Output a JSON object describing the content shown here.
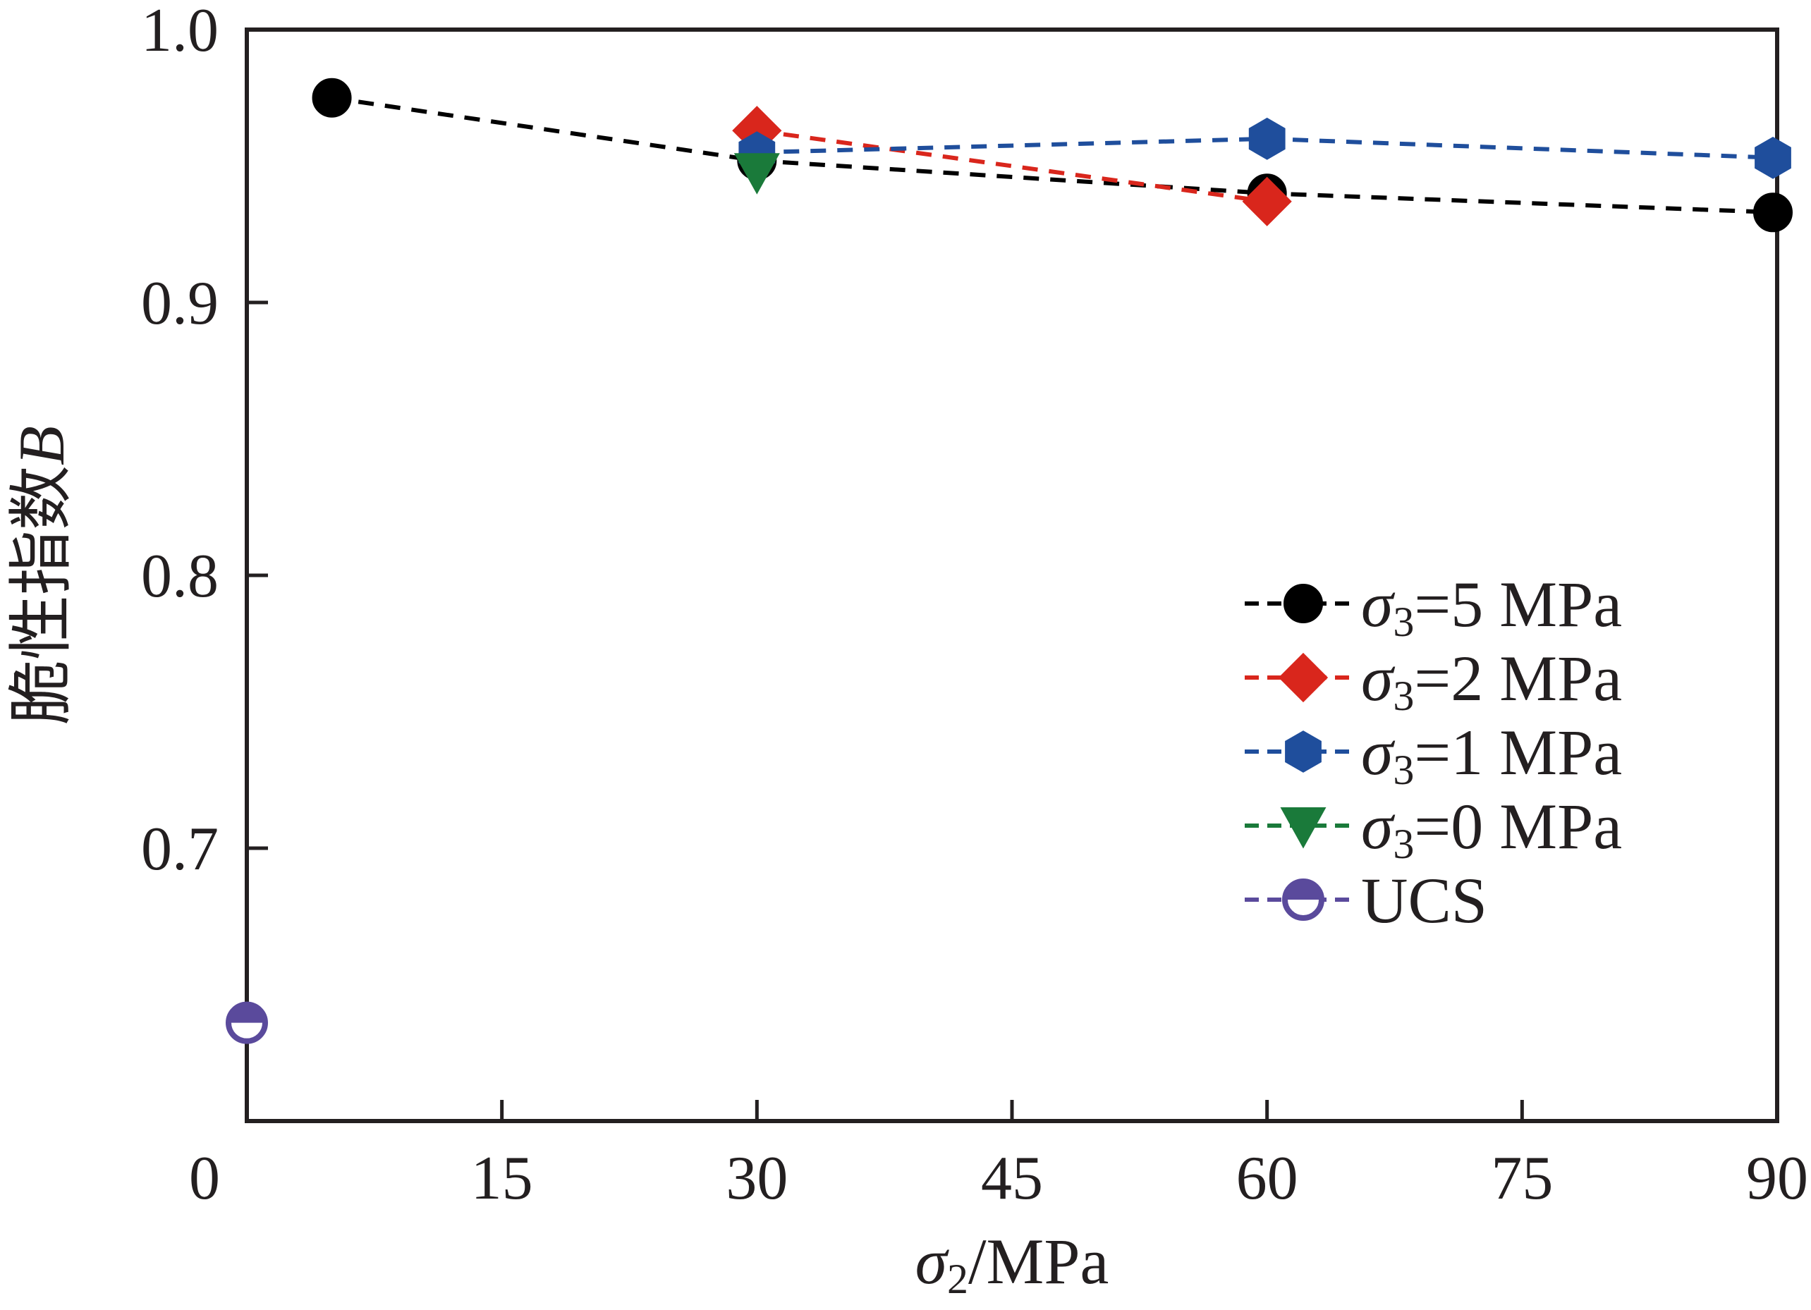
{
  "chart_data": {
    "type": "line",
    "xlabel": "/MPa",
    "xlabel_symbol": "σ",
    "xlabel_subscript": "2",
    "ylabel": "脆性指数",
    "ylabel_symbol": "B",
    "xlim": [
      0,
      90
    ],
    "ylim": [
      0.6,
      1.0
    ],
    "xticks": [
      "0",
      "15",
      "30",
      "45",
      "60",
      "75",
      "90"
    ],
    "xtick_values": [
      0,
      15,
      30,
      45,
      60,
      75,
      90
    ],
    "yticks": [
      "0.7",
      "0.8",
      "0.9",
      "1.0"
    ],
    "ytick_values": [
      0.7,
      0.8,
      0.9,
      1.0
    ],
    "grid": false,
    "legend_position": "right",
    "series": [
      {
        "name": "=5 MPa",
        "prefix": "σ",
        "subscript": "3",
        "x": [
          5,
          30,
          60,
          90
        ],
        "y": [
          0.975,
          0.952,
          0.94,
          0.933
        ],
        "color": "#000000",
        "marker": "circle"
      },
      {
        "name": "=2 MPa",
        "prefix": "σ",
        "subscript": "3",
        "x": [
          30,
          60
        ],
        "y": [
          0.963,
          0.937
        ],
        "color": "#d9261c",
        "marker": "diamond"
      },
      {
        "name": "=1 MPa",
        "prefix": "σ",
        "subscript": "3",
        "x": [
          30,
          60,
          90
        ],
        "y": [
          0.955,
          0.96,
          0.953
        ],
        "color": "#1f4e9c",
        "marker": "hexagon"
      },
      {
        "name": "=0 MPa",
        "prefix": "σ",
        "subscript": "3",
        "x": [
          30
        ],
        "y": [
          0.948
        ],
        "color": "#1a7a3a",
        "marker": "triangle-down"
      },
      {
        "name": "UCS",
        "prefix": "",
        "subscript": "",
        "x": [
          0
        ],
        "y": [
          0.636
        ],
        "color": "#5a4a9c",
        "marker": "half-circle"
      }
    ]
  }
}
